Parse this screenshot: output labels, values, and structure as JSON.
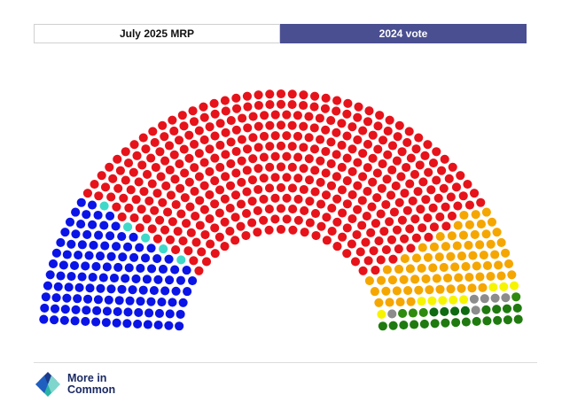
{
  "tabs": [
    {
      "label": "July 2025 MRP",
      "active": false
    },
    {
      "label": "2024 vote",
      "active": true
    }
  ],
  "chart_data": {
    "type": "parliament",
    "total_seats": 650,
    "series": [
      {
        "key": "blue",
        "seats": 121,
        "color": "#0a14e6"
      },
      {
        "key": "turquoise",
        "seats": 5,
        "color": "#40d9c9"
      },
      {
        "key": "red",
        "seats": 411,
        "color": "#e6131b"
      },
      {
        "key": "orange",
        "seats": 72,
        "color": "#f5a600"
      },
      {
        "key": "yellow",
        "seats": 9,
        "color": "#f7f400"
      },
      {
        "key": "grey",
        "seats": 5,
        "color": "#8c8c8c"
      },
      {
        "key": "green",
        "seats": 4,
        "color": "#2f8a10"
      },
      {
        "key": "dark green",
        "seats": 4,
        "color": "#0f6a12"
      },
      {
        "key": "gray end",
        "seats": 1,
        "color": "#8c8c8c"
      },
      {
        "key": "green end",
        "seats": 18,
        "color": "#1f7a10"
      }
    ]
  },
  "logo": {
    "text": "More in\nCommon",
    "colors": [
      "#1b3b8c",
      "#2bb3a8",
      "#1f5fbf",
      "#7fd6cc"
    ]
  }
}
